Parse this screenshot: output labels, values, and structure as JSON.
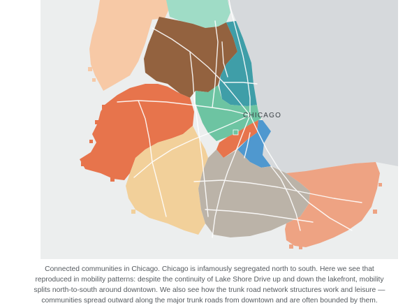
{
  "map": {
    "city_label": "CHICAGO",
    "colors": {
      "land": "#eceeee",
      "lake": "#d6d9dc",
      "roads": "#ffffff",
      "north_peach": "#f7c9a6",
      "northwest_brown": "#93623f",
      "north_shore_mint": "#9fdcc6",
      "lakefront_teal": "#3f9ea8",
      "central_green": "#6dc4a2",
      "west_orange": "#e7744c",
      "south_loop_blue": "#4f98cf",
      "southwest_tan": "#f2d09a",
      "south_gray": "#bbb3a8",
      "southeast_salmon": "#eea383"
    }
  },
  "caption": {
    "text": "Connected communities in Chicago. Chicago is infamously segregated north to south. Here we see that reproduced in mobility patterns: despite the continuity of Lake Shore Drive up and down the lakefront, mobility splits north-to-south around downtown. We also see how the trunk road network structures work and leisure — communities spread outward along the major trunk roads from downtown and are often bounded by them."
  }
}
